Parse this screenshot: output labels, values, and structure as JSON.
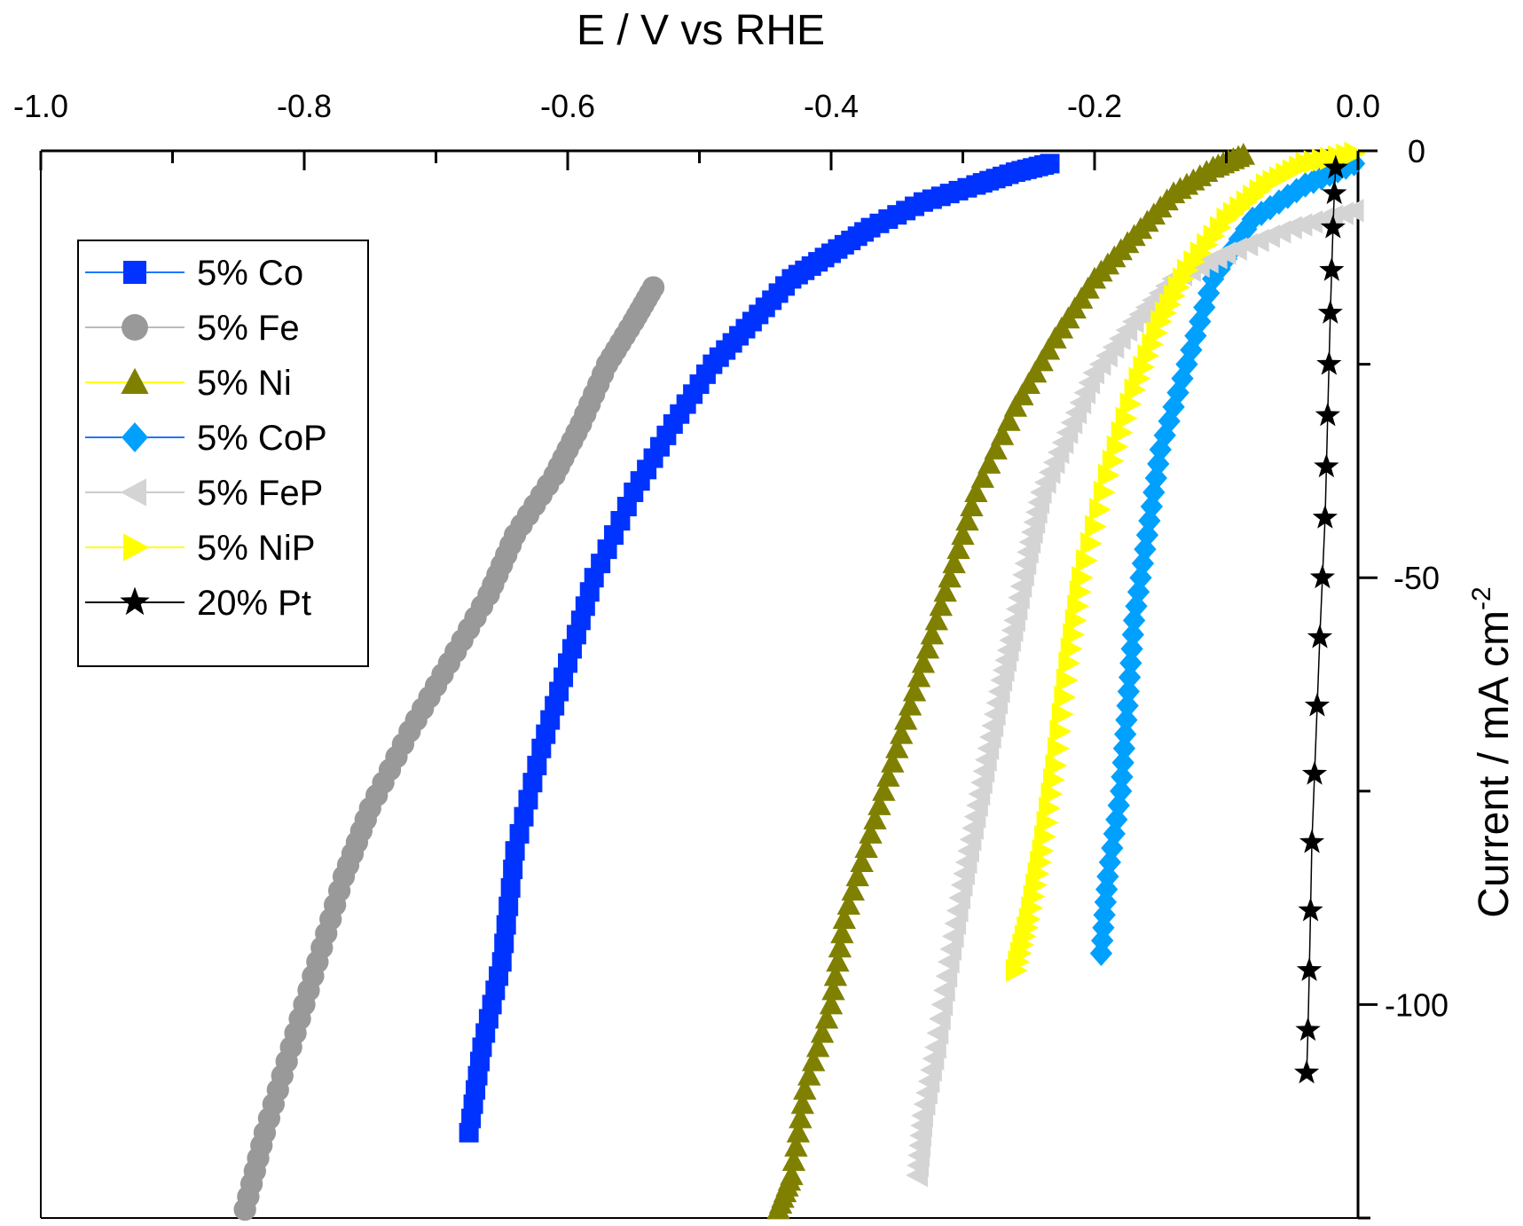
{
  "chart_data": {
    "type": "scatter",
    "xlabel": "E / V vs RHE",
    "ylabel": "Current / mA cm",
    "ylabel_superscript": "-2",
    "xlim": [
      -1.0,
      0.0
    ],
    "ylim": [
      -125,
      0
    ],
    "x_ticks": [
      -1.0,
      -0.8,
      -0.6,
      -0.4,
      -0.2,
      0.0
    ],
    "x_tick_labels": [
      "-1.0",
      "-0.8",
      "-0.6",
      "-0.4",
      "-0.2",
      "0.0"
    ],
    "y_ticks": [
      0,
      -50,
      -100
    ],
    "y_tick_labels": [
      "0",
      "-50",
      "-100"
    ],
    "legend_position": "upper-left",
    "series": [
      {
        "name": "5% Co",
        "marker": "square",
        "color": "#0033ff",
        "line_color": "#1f77ff",
        "points": [
          [
            -0.234,
            -1.5
          ],
          [
            -0.26,
            -2.5
          ],
          [
            -0.29,
            -4
          ],
          [
            -0.33,
            -6
          ],
          [
            -0.37,
            -9
          ],
          [
            -0.4,
            -12
          ],
          [
            -0.43,
            -15
          ],
          [
            -0.46,
            -20
          ],
          [
            -0.49,
            -25
          ],
          [
            -0.52,
            -32
          ],
          [
            -0.55,
            -40
          ],
          [
            -0.58,
            -50
          ],
          [
            -0.6,
            -60
          ],
          [
            -0.62,
            -70
          ],
          [
            -0.64,
            -82
          ],
          [
            -0.65,
            -95
          ],
          [
            -0.665,
            -105
          ],
          [
            -0.675,
            -115
          ]
        ]
      },
      {
        "name": "5% Fe",
        "marker": "circle",
        "color": "#999999",
        "line_color": "#bbbbbb",
        "points": [
          [
            -0.535,
            -16
          ],
          [
            -0.55,
            -20
          ],
          [
            -0.57,
            -25
          ],
          [
            -0.59,
            -32
          ],
          [
            -0.61,
            -38
          ],
          [
            -0.64,
            -45
          ],
          [
            -0.66,
            -52
          ],
          [
            -0.69,
            -60
          ],
          [
            -0.72,
            -68
          ],
          [
            -0.75,
            -77
          ],
          [
            -0.77,
            -85
          ],
          [
            -0.79,
            -95
          ],
          [
            -0.81,
            -105
          ],
          [
            -0.83,
            -115
          ],
          [
            -0.845,
            -124
          ]
        ]
      },
      {
        "name": "5% Ni",
        "marker": "triangle-up",
        "color": "#808000",
        "line_color": "#ffff00",
        "points": [
          [
            -0.087,
            -0.5
          ],
          [
            -0.11,
            -2
          ],
          [
            -0.14,
            -5
          ],
          [
            -0.17,
            -10
          ],
          [
            -0.2,
            -15
          ],
          [
            -0.23,
            -22
          ],
          [
            -0.26,
            -30
          ],
          [
            -0.29,
            -40
          ],
          [
            -0.31,
            -50
          ],
          [
            -0.33,
            -60
          ],
          [
            -0.35,
            -70
          ],
          [
            -0.37,
            -80
          ],
          [
            -0.39,
            -90
          ],
          [
            -0.4,
            -100
          ],
          [
            -0.42,
            -110
          ],
          [
            -0.43,
            -120
          ],
          [
            -0.44,
            -124
          ]
        ]
      },
      {
        "name": "5% CoP",
        "marker": "diamond",
        "color": "#00a0ff",
        "line_color": "#1f77ff",
        "points": [
          [
            -0.003,
            -1.5
          ],
          [
            -0.04,
            -4
          ],
          [
            -0.08,
            -8
          ],
          [
            -0.11,
            -15
          ],
          [
            -0.13,
            -25
          ],
          [
            -0.15,
            -35
          ],
          [
            -0.16,
            -45
          ],
          [
            -0.17,
            -55
          ],
          [
            -0.175,
            -65
          ],
          [
            -0.18,
            -75
          ],
          [
            -0.19,
            -85
          ],
          [
            -0.195,
            -94
          ]
        ]
      },
      {
        "name": "5% FeP",
        "marker": "triangle-left",
        "color": "#d4d4d4",
        "line_color": "#cccccc",
        "points": [
          [
            -0.003,
            -7
          ],
          [
            -0.05,
            -9
          ],
          [
            -0.1,
            -12
          ],
          [
            -0.14,
            -15
          ],
          [
            -0.17,
            -20
          ],
          [
            -0.2,
            -26
          ],
          [
            -0.22,
            -33
          ],
          [
            -0.24,
            -40
          ],
          [
            -0.25,
            -47
          ],
          [
            -0.26,
            -55
          ],
          [
            -0.27,
            -62
          ],
          [
            -0.28,
            -70
          ],
          [
            -0.29,
            -78
          ],
          [
            -0.3,
            -86
          ],
          [
            -0.31,
            -95
          ],
          [
            -0.32,
            -105
          ],
          [
            -0.33,
            -113
          ],
          [
            -0.334,
            -120
          ]
        ]
      },
      {
        "name": "5% NiP",
        "marker": "triangle-right",
        "color": "#ffff00",
        "line_color": "#ffff00",
        "points": [
          [
            -0.003,
            -0.3
          ],
          [
            -0.04,
            -1.5
          ],
          [
            -0.07,
            -4
          ],
          [
            -0.1,
            -8
          ],
          [
            -0.13,
            -14
          ],
          [
            -0.15,
            -20
          ],
          [
            -0.17,
            -28
          ],
          [
            -0.19,
            -38
          ],
          [
            -0.21,
            -50
          ],
          [
            -0.22,
            -60
          ],
          [
            -0.23,
            -72
          ],
          [
            -0.24,
            -82
          ],
          [
            -0.25,
            -90
          ],
          [
            -0.26,
            -96
          ]
        ]
      },
      {
        "name": "20% Pt",
        "marker": "star",
        "color": "#000000",
        "line_color": "#000000",
        "points": [
          [
            -0.017,
            -2
          ],
          [
            -0.018,
            -5
          ],
          [
            -0.019,
            -9
          ],
          [
            -0.02,
            -14
          ],
          [
            -0.021,
            -19
          ],
          [
            -0.022,
            -25
          ],
          [
            -0.023,
            -31
          ],
          [
            -0.024,
            -37
          ],
          [
            -0.025,
            -43
          ],
          [
            -0.027,
            -50
          ],
          [
            -0.029,
            -57
          ],
          [
            -0.031,
            -65
          ],
          [
            -0.033,
            -73
          ],
          [
            -0.035,
            -81
          ],
          [
            -0.036,
            -89
          ],
          [
            -0.037,
            -96
          ],
          [
            -0.038,
            -103
          ],
          [
            -0.039,
            -108
          ]
        ]
      }
    ]
  }
}
